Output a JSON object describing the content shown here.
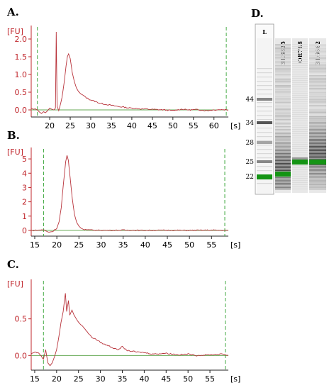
{
  "figure_labels": [
    "A.",
    "B.",
    "C.",
    "D."
  ],
  "colors": {
    "trace": "#b8323a",
    "axis_red": "#c0272d",
    "axis_black": "#222222",
    "baseline_green": "#66aa55",
    "marker_green": "#44aa44",
    "gel_marker": "#149414"
  },
  "chart_data": [
    {
      "panel": "A.",
      "type": "line",
      "ylabel": "[FU]",
      "yticks": [
        "2.0",
        "1.5",
        "1.0",
        "0.5",
        "0.0"
      ],
      "ylim": [
        -0.2,
        2.3
      ],
      "xticks": [
        "20",
        "25",
        "30",
        "35",
        "40",
        "45",
        "50",
        "55",
        "60"
      ],
      "xunit": "[s]",
      "xlim": [
        15.5,
        63.5
      ],
      "marker_lines_x": [
        17,
        63
      ],
      "baseline_y": 0.0,
      "series": [
        {
          "x": [
            15.5,
            16,
            16.5,
            17,
            17.5,
            18,
            18.5,
            19,
            19.5,
            20,
            20.5,
            21,
            21.4,
            21.6,
            21.8,
            22,
            22.2,
            22.5,
            23,
            23.5,
            24,
            24.3,
            24.6,
            25,
            25.5,
            26,
            26.5,
            27,
            27.5,
            28,
            29,
            30,
            31,
            32,
            33,
            34,
            35,
            36,
            37,
            38,
            39,
            40,
            42,
            44,
            46,
            48,
            50,
            52,
            54,
            56,
            58,
            60,
            62,
            63.5
          ],
          "y": [
            0.05,
            0.02,
            0.03,
            0.0,
            -0.06,
            -0.1,
            -0.05,
            -0.08,
            -0.02,
            0.05,
            0.02,
            0.0,
            0.05,
            2.2,
            0.1,
            0.05,
            -0.02,
            0.1,
            0.35,
            0.75,
            1.25,
            1.5,
            1.58,
            1.45,
            1.05,
            0.8,
            0.62,
            0.52,
            0.46,
            0.42,
            0.34,
            0.28,
            0.24,
            0.2,
            0.17,
            0.15,
            0.13,
            0.11,
            0.09,
            0.08,
            0.06,
            0.05,
            0.03,
            0.02,
            0.01,
            0.0,
            -0.02,
            0.02,
            0.0,
            0.01,
            -0.02,
            0.0,
            0.01,
            0.0
          ]
        }
      ]
    },
    {
      "panel": "B.",
      "type": "line",
      "ylabel": "[FU]",
      "yticks": [
        "5",
        "4",
        "3",
        "2",
        "1",
        "0"
      ],
      "ylim": [
        -0.4,
        5.6
      ],
      "xticks": [
        "15",
        "20",
        "25",
        "30",
        "35",
        "40",
        "45",
        "50",
        "55"
      ],
      "xunit": "[s]",
      "xlim": [
        14.2,
        58.8
      ],
      "marker_lines_x": [
        17,
        58
      ],
      "baseline_y": 0.0,
      "series": [
        {
          "x": [
            14.2,
            15,
            16,
            17,
            18,
            19,
            20,
            20.5,
            21,
            21.5,
            22,
            22.3,
            22.6,
            23,
            23.5,
            24,
            24.5,
            25,
            25.5,
            26,
            27,
            28,
            30,
            32,
            35,
            40,
            45,
            50,
            55,
            58.8
          ],
          "y": [
            0.0,
            0.0,
            0.02,
            0.05,
            -0.12,
            -0.08,
            0.15,
            0.6,
            1.6,
            3.3,
            4.8,
            5.25,
            4.9,
            3.7,
            2.2,
            1.1,
            0.55,
            0.3,
            0.15,
            0.08,
            0.04,
            0.02,
            0.01,
            0.0,
            0.02,
            0.0,
            0.01,
            0.0,
            0.02,
            0.0
          ]
        }
      ]
    },
    {
      "panel": "C.",
      "type": "line",
      "ylabel": "[FU]",
      "yticks": [
        "0.5",
        "0.0"
      ],
      "ylim": [
        -0.2,
        1.0
      ],
      "xticks": [
        "15",
        "20",
        "25",
        "30",
        "35",
        "40",
        "45",
        "50",
        "55"
      ],
      "xunit": "[s]",
      "xlim": [
        14.2,
        59.2
      ],
      "marker_lines_x": [
        17,
        58.5
      ],
      "baseline_y": 0.0,
      "series": [
        {
          "x": [
            14.2,
            15,
            16,
            17,
            17.5,
            18,
            18.5,
            19,
            19.5,
            20,
            20.5,
            21,
            21.5,
            22,
            22.3,
            22.7,
            23,
            23.5,
            24,
            24.5,
            25,
            26,
            27,
            28,
            29,
            30,
            31,
            32,
            33,
            34,
            35,
            36,
            38,
            40,
            42,
            45,
            48,
            50,
            52,
            55,
            58,
            59.2
          ],
          "y": [
            0.02,
            0.05,
            0.03,
            -0.05,
            0.08,
            -0.1,
            -0.14,
            -0.1,
            -0.02,
            0.08,
            0.25,
            0.45,
            0.6,
            0.85,
            0.6,
            0.75,
            0.55,
            0.62,
            0.55,
            0.5,
            0.45,
            0.4,
            0.32,
            0.25,
            0.22,
            0.18,
            0.15,
            0.13,
            0.1,
            0.08,
            0.12,
            0.07,
            0.05,
            0.04,
            0.02,
            0.03,
            0.01,
            0.02,
            0.0,
            0.01,
            0.02,
            0.0
          ]
        }
      ]
    }
  ],
  "gel": {
    "lanes": [
      {
        "label": "L",
        "bands": [
          {
            "size": "44",
            "intensity": 0.6
          },
          {
            "size": "34",
            "intensity": 0.85
          },
          {
            "size": "28",
            "intensity": 0.45
          },
          {
            "size": "25",
            "intensity": 0.6
          },
          {
            "size": "22",
            "intensity": 1.0,
            "marker": true
          }
        ]
      },
      {
        "label": "BL3825",
        "marker_size": "22",
        "smear": true
      },
      {
        "label": "OR748",
        "marker_size": "25",
        "smear": false
      },
      {
        "label": "BL6662",
        "marker_size": "25",
        "smear": true
      }
    ],
    "size_labels": [
      "44",
      "34",
      "28",
      "25",
      "22"
    ]
  }
}
